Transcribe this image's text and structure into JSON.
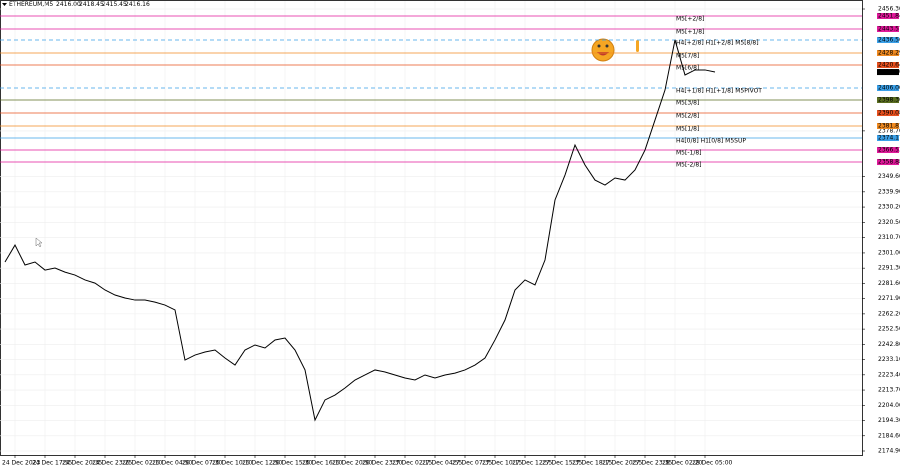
{
  "chart_data": {
    "type": "line",
    "title": "ETHEREUM,M5",
    "ohlc": [
      {
        "value": 2416,
        "label": "2416.00"
      },
      {
        "value": 2418.45,
        "label": "2418.45"
      },
      {
        "value": 2415.45,
        "label": "2415.45"
      },
      {
        "value": 2416.16,
        "label": "2416.16"
      }
    ],
    "categories": [
      null,
      "24 Dec 2023",
      null,
      null,
      "24 Dec 17:55",
      null,
      null,
      "24 Dec 20:35",
      null,
      null,
      "24 Dec 23:25",
      null,
      null,
      "26 Dec 02:10",
      null,
      null,
      "26 Dec 04:50",
      null,
      null,
      "26 Dec 07:30",
      null,
      null,
      "26 Dec 10:10",
      null,
      null,
      "26 Dec 12:50",
      null,
      null,
      "26 Dec 15:30",
      null,
      null,
      "26 Dec 16:10",
      null,
      null,
      "26 Dec 20:50",
      null,
      null,
      "26 Dec 23:30",
      null,
      null,
      "27 Dec 02:15",
      null,
      null,
      "27 Dec 04:55",
      null,
      null,
      "27 Dec 07:35",
      null,
      null,
      "27 Dec 10:15",
      null,
      null,
      "27 Dec 12:55",
      null,
      null,
      "27 Dec 15:35",
      null,
      null,
      "27 Dec 18:15",
      null,
      null,
      "27 Dec 20:55",
      null,
      null,
      "27 Dec 23:35",
      null,
      null,
      "28 Dec 02:20",
      null,
      null,
      "28 Dec 05:00",
      null
    ],
    "series": [
      {
        "color": "#000000",
        "values": [
          2295.2,
          2306.0,
          2293.3,
          2295.2,
          2290.1,
          2291.4,
          2288.8,
          2286.9,
          2283.8,
          2281.8,
          2277.4,
          2274.2,
          2272.3,
          2271.0,
          2271.0,
          2269.7,
          2267.8,
          2264.7,
          2232.8,
          2236.0,
          2237.9,
          2239.2,
          2234.1,
          2229.6,
          2239.2,
          2242.4,
          2240.5,
          2245.6,
          2246.8,
          2239.2,
          2226.5,
          2194.6,
          2207.4,
          2210.5,
          2215.0,
          2220.1,
          2223.3,
          2226.5,
          2225.2,
          2223.3,
          2221.4,
          2220.1,
          2223.3,
          2221.4,
          2223.3,
          2224.5,
          2226.5,
          2229.6,
          2234.1,
          2245.6,
          2258.3,
          2277.4,
          2283.8,
          2280.6,
          2296.5,
          2334.7,
          2350.6,
          2369.7,
          2357.0,
          2347.4,
          2344.2,
          2348.7,
          2347.4,
          2353.8,
          2366.5,
          2385.6,
          2404.7,
          2436.6,
          2414.3,
          2417.5,
          2417.5,
          2416.16
        ]
      }
    ],
    "ylim": [
      2174.9,
      2456.3
    ],
    "yticks": [
      {
        "value": 2456.3,
        "label": "2456.30"
      },
      {
        "value": 2378.7,
        "label": "2378.70"
      },
      {
        "value": 2349.6,
        "label": "2349.60"
      },
      {
        "value": 2339.9,
        "label": "2339.90"
      },
      {
        "value": 2330.2,
        "label": "2330.20"
      },
      {
        "value": 2320.5,
        "label": "2320.50"
      },
      {
        "value": 2310.7,
        "label": "2310.70"
      },
      {
        "value": 2301,
        "label": "2301.00"
      },
      {
        "value": 2291.3,
        "label": "2291.30"
      },
      {
        "value": 2281.6,
        "label": "2281.60"
      },
      {
        "value": 2271.9,
        "label": "2271.90"
      },
      {
        "value": 2262.2,
        "label": "2262.20"
      },
      {
        "value": 2252.5,
        "label": "2252.50"
      },
      {
        "value": 2242.8,
        "label": "2242.80"
      },
      {
        "value": 2233.1,
        "label": "2233.10"
      },
      {
        "value": 2223.4,
        "label": "2223.40"
      },
      {
        "value": 2213.7,
        "label": "2213.70"
      },
      {
        "value": 2204,
        "label": "2204.00"
      },
      {
        "value": 2194.3,
        "label": "2194.30"
      },
      {
        "value": 2184.6,
        "label": "2184.60"
      },
      {
        "value": 2174.9,
        "label": "2174.90"
      }
    ],
    "grid": true,
    "levels": [
      {
        "name": "M5[+2/8]",
        "value": 2451.84,
        "label": "2451.84",
        "color": "#e0189a",
        "dashed": false
      },
      {
        "name": "M5[+1/8]",
        "value": 2443.57,
        "label": "2443.57",
        "color": "#e0189a",
        "dashed": false
      },
      {
        "name": "H4[+2/8] H1[+2/8] M5[8/8]",
        "value": 2436.56,
        "label": "2436.56",
        "color": "#3aa0e8",
        "dashed": true
      },
      {
        "name": "M5[7/8]",
        "value": 2428.29,
        "label": "2428.29",
        "color": "#f08a20",
        "dashed": false
      },
      {
        "name": "M5[6/8]",
        "value": 2420.64,
        "label": "2420.64",
        "color": "#e8501e",
        "dashed": false
      },
      {
        "name": "H4[+1/8] H1[+1/8] M5PIVOT",
        "value": 2406.0,
        "label": "2406.00",
        "color": "#3aa0e8",
        "dashed": true
      },
      {
        "name": "M5[3/8]",
        "value": 2398.36,
        "label": "2398.36",
        "color": "#5a6e20",
        "dashed": false
      },
      {
        "name": "M5[2/8]",
        "value": 2390.08,
        "label": "2390.08",
        "color": "#e8501e",
        "dashed": false
      },
      {
        "name": "M5[1/8]",
        "value": 2381.81,
        "label": "2381.81",
        "color": "#f08a20",
        "dashed": false
      },
      {
        "name": "H4[0/8] H1[0/8] M5SUP",
        "value": 2374.17,
        "label": "2374.17",
        "color": "#3aa0e8",
        "dashed": false
      },
      {
        "name": "M5[-1/8]",
        "value": 2366.53,
        "label": "2366.53",
        "color": "#e0189a",
        "dashed": false
      },
      {
        "name": "M5[-2/8]",
        "value": 2358.88,
        "label": "2358.88",
        "color": "#e0189a",
        "dashed": false
      }
    ],
    "current_price": {
      "value": 2416.16,
      "label": "2416.16"
    }
  }
}
